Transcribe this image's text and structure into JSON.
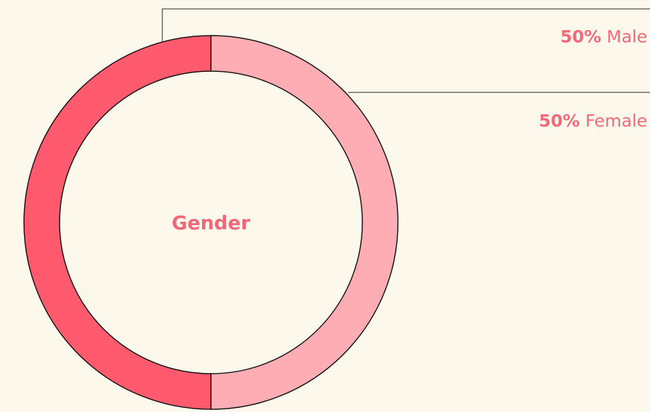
{
  "chart_data": {
    "type": "donut",
    "title": "Gender",
    "categories": [
      "Male",
      "Female"
    ],
    "values": [
      50,
      50
    ],
    "value_labels": [
      "50%",
      "50%"
    ],
    "colors": [
      "#ff5a6d",
      "#ffadb5"
    ]
  }
}
